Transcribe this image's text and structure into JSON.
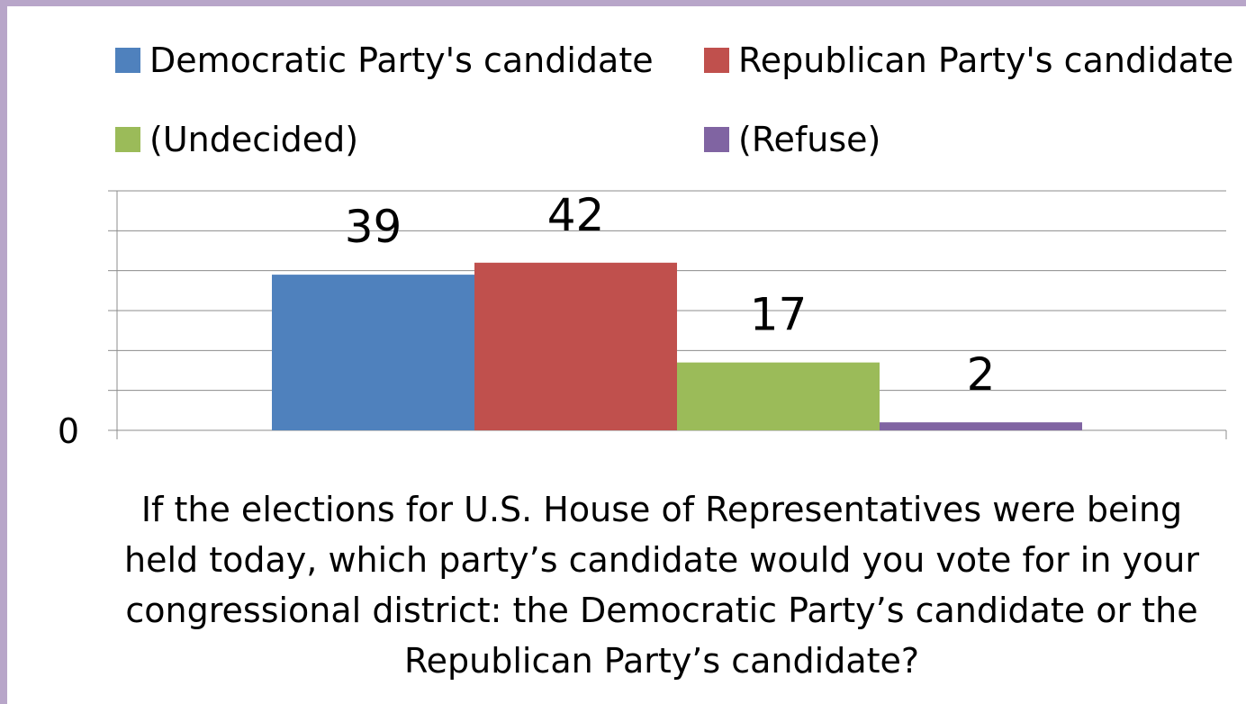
{
  "chart_data": {
    "type": "bar",
    "categories": [
      ""
    ],
    "series": [
      {
        "name": "Democratic Party's candidate",
        "values": [
          39
        ],
        "color": "#4f81bd"
      },
      {
        "name": "Republican Party's candidate",
        "values": [
          42
        ],
        "color": "#c0504d"
      },
      {
        "name": "(Undecided)",
        "values": [
          17
        ],
        "color": "#9bbb59"
      },
      {
        "name": "(Refuse)",
        "values": [
          2
        ],
        "color": "#8064a2"
      }
    ],
    "data_labels": [
      "39",
      "42",
      "17",
      "2"
    ],
    "ylim": [
      0,
      60
    ],
    "ytick_labels": [
      "0"
    ],
    "grid": true,
    "legend_position": "top",
    "xlabel": "If the elections for U.S. House of Representatives were being held today, which party’s candidate would you vote for in your congressional district: the Democratic Party’s candidate or the Republican Party’s candidate?"
  }
}
